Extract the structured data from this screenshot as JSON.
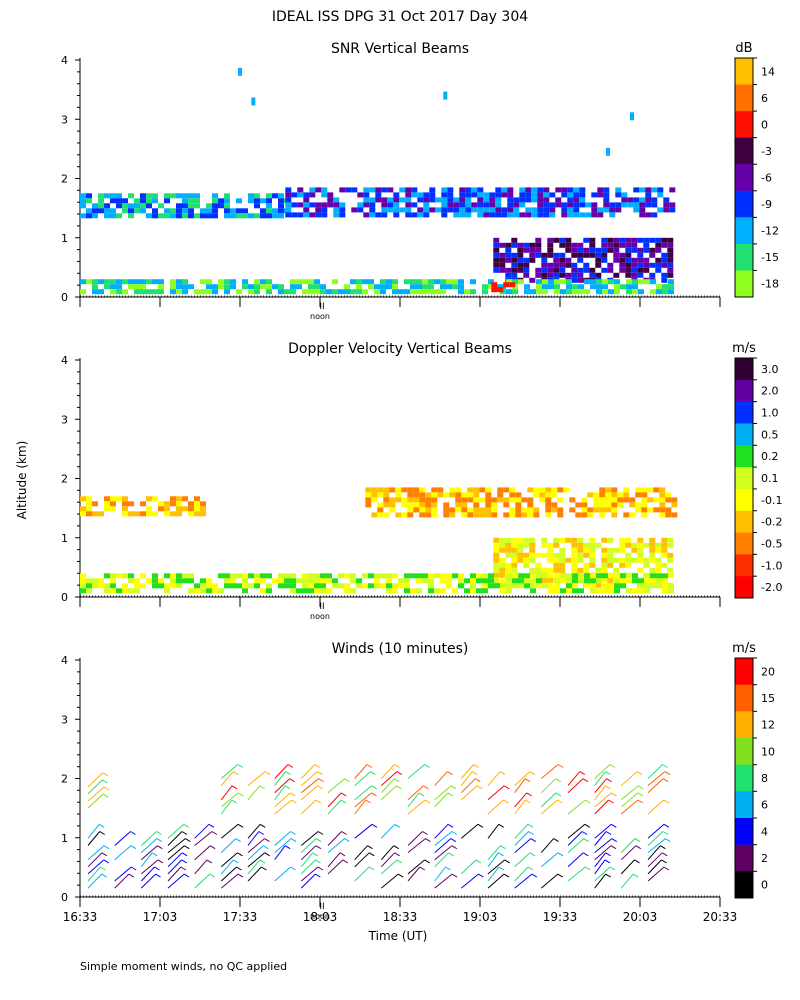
{
  "header": {
    "title": "IDEAL ISS DPG  31 Oct 2017 Day 304"
  },
  "footer": {
    "note": "Simple moment winds, no QC applied"
  },
  "noon_label": "noon",
  "noon_marker": "II",
  "shared": {
    "ylabel": "Altitude (km)",
    "xlabel": "Time (UT)",
    "ylim": [
      0,
      4
    ],
    "yticks": [
      "0",
      "1",
      "2",
      "3",
      "4"
    ],
    "xticks": [
      "16:33",
      "17:03",
      "17:33",
      "18:03",
      "18:33",
      "19:03",
      "19:33",
      "20:03",
      "20:33"
    ]
  },
  "chart_data": [
    {
      "type": "heatmap",
      "title": "SNR Vertical Beams",
      "colorbar_unit": "dB",
      "colorbar_labels": [
        "14",
        "6",
        "0",
        "-3",
        "-6",
        "-9",
        "-12",
        "-15",
        "-18"
      ],
      "colorbar_colors": [
        "#ffc000",
        "#ff7000",
        "#ff1000",
        "#400040",
        "#6600aa",
        "#0030ff",
        "#00b0ff",
        "#20e070",
        "#90ff20"
      ],
      "ylim": [
        0,
        4
      ],
      "xlim": [
        "16:33",
        "20:33"
      ],
      "bands": [
        {
          "t0": "16:33",
          "t1": "17:50",
          "z0": 1.4,
          "z1": 1.75,
          "class": "-12"
        },
        {
          "t0": "17:50",
          "t1": "20:15",
          "z0": 1.35,
          "z1": 1.85,
          "class": "-9"
        },
        {
          "t0": "19:08",
          "t1": "20:15",
          "z0": 0.25,
          "z1": 1.0,
          "class": "-6"
        },
        {
          "t0": "16:33",
          "t1": "20:15",
          "z0": 0.1,
          "z1": 0.3,
          "class": "-15"
        },
        {
          "t0": "19:05",
          "t1": "19:15",
          "z0": 0.1,
          "z1": 0.25,
          "class": "0"
        }
      ],
      "spots": [
        {
          "t": "17:33",
          "z": 3.8
        },
        {
          "t": "17:38",
          "z": 3.3
        },
        {
          "t": "18:50",
          "z": 3.4
        },
        {
          "t": "19:51",
          "z": 2.45
        },
        {
          "t": "20:00",
          "z": 3.05
        }
      ]
    },
    {
      "type": "heatmap",
      "title": "Doppler Velocity Vertical Beams",
      "colorbar_unit": "m/s",
      "colorbar_labels": [
        "3.0",
        "2.0",
        "1.0",
        "0.5",
        "0.2",
        "0.1",
        "-0.1",
        "-0.2",
        "-0.5",
        "-1.0",
        "-2.0"
      ],
      "colorbar_colors": [
        "#300030",
        "#6000a0",
        "#0030ff",
        "#00b0f0",
        "#20e020",
        "#d0ff20",
        "#ffff00",
        "#ffc000",
        "#ff8000",
        "#ff3000",
        "#ff0000"
      ],
      "ylim": [
        0,
        4
      ],
      "xlim": [
        "16:33",
        "20:33"
      ],
      "bands": [
        {
          "t0": "16:33",
          "t1": "17:20",
          "z0": 1.4,
          "z1": 1.7,
          "class": "-0.2"
        },
        {
          "t0": "18:20",
          "t1": "20:15",
          "z0": 1.4,
          "z1": 1.85,
          "class": "-0.2"
        },
        {
          "t0": "19:08",
          "t1": "20:15",
          "z0": 0.2,
          "z1": 1.0,
          "class": "-0.1"
        },
        {
          "t0": "16:33",
          "t1": "20:15",
          "z0": 0.1,
          "z1": 0.4,
          "class": "0.1"
        }
      ]
    },
    {
      "type": "wind-barbs",
      "title": "Winds (10 minutes)",
      "colorbar_unit": "m/s",
      "colorbar_labels": [
        "20",
        "15",
        "12",
        "10",
        "8",
        "6",
        "4",
        "2",
        "0"
      ],
      "colorbar_colors": [
        "#ff0000",
        "#ff6000",
        "#ffb000",
        "#80e020",
        "#20e070",
        "#00b0f0",
        "#0000ff",
        "#600060",
        "#000000"
      ],
      "interval_min": 10,
      "ylim": [
        0,
        4
      ],
      "xlim": [
        "16:33",
        "20:33"
      ]
    }
  ]
}
